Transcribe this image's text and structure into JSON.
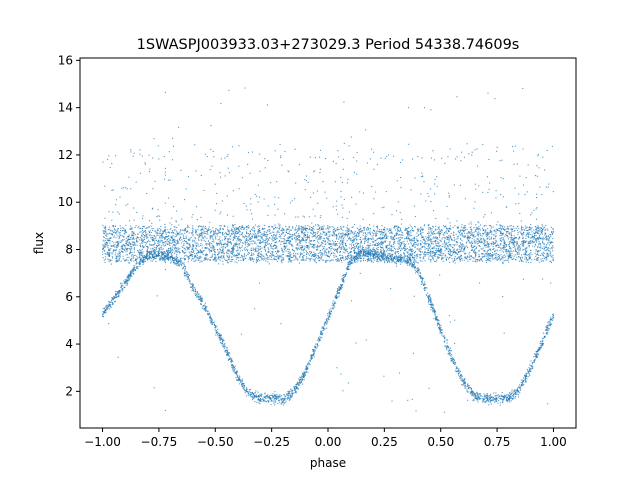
{
  "chart_data": {
    "type": "scatter",
    "title": "1SWASPJ003933.03+273029.3 Period 54338.74609s",
    "xlabel": "phase",
    "ylabel": "flux",
    "xlim": [
      -1.1,
      1.1
    ],
    "ylim": [
      0.45,
      16.1
    ],
    "x_ticks": [
      -1.0,
      -0.75,
      -0.5,
      -0.25,
      0.0,
      0.25,
      0.5,
      0.75,
      1.0
    ],
    "x_tick_labels": [
      "−1.00",
      "−0.75",
      "−0.50",
      "−0.25",
      "0.00",
      "0.25",
      "0.50",
      "0.75",
      "1.00"
    ],
    "y_ticks": [
      2,
      4,
      6,
      8,
      10,
      12,
      14,
      16
    ],
    "y_tick_labels": [
      "2",
      "4",
      "6",
      "8",
      "10",
      "12",
      "14",
      "16"
    ],
    "grid": false,
    "point_color": "#1f77b4",
    "series": [
      {
        "x": [
          -1.0,
          -0.95,
          -0.9,
          -0.85,
          -0.8,
          -0.75,
          -0.7,
          -0.65,
          -0.6,
          -0.55,
          -0.5,
          -0.45,
          -0.4,
          -0.35,
          -0.3,
          -0.25,
          -0.2,
          -0.15,
          -0.1,
          -0.05,
          0.0,
          0.05,
          0.1,
          0.15,
          0.2,
          0.25,
          0.3,
          0.35,
          0.4,
          0.45,
          0.5,
          0.55,
          0.6,
          0.65,
          0.7,
          0.75,
          0.8,
          0.85,
          0.9,
          0.95,
          1.0
        ],
        "y": [
          8.2,
          8.2,
          8.2,
          8.2,
          8.2,
          8.2,
          8.2,
          8.2,
          8.2,
          8.2,
          8.2,
          8.2,
          8.2,
          8.2,
          8.2,
          8.2,
          8.2,
          8.2,
          8.2,
          8.2,
          8.2,
          8.2,
          8.2,
          8.2,
          8.2,
          8.2,
          8.2,
          8.2,
          8.2,
          8.2,
          8.2,
          8.2,
          8.2,
          8.2,
          8.2,
          8.2,
          8.2,
          8.2,
          8.2,
          8.2,
          8.2
        ]
      },
      {
        "x": [
          -1.0,
          -0.95,
          -0.9,
          -0.85,
          -0.8,
          -0.75,
          -0.7,
          -0.65,
          -0.6,
          -0.55,
          -0.5,
          -0.45,
          -0.4,
          -0.35,
          -0.3,
          -0.25,
          -0.2,
          -0.15,
          -0.1,
          -0.05,
          0.0,
          0.05,
          0.1,
          0.15,
          0.2,
          0.25,
          0.3,
          0.35,
          0.4,
          0.45,
          0.5,
          0.55,
          0.6,
          0.65,
          0.7,
          0.75,
          0.8,
          0.85,
          0.9,
          0.95,
          1.0
        ],
        "y": [
          5.3,
          5.9,
          6.6,
          7.3,
          7.7,
          7.8,
          7.7,
          7.4,
          6.4,
          5.6,
          4.7,
          3.7,
          2.6,
          1.9,
          1.7,
          1.7,
          1.7,
          2.0,
          2.8,
          4.0,
          5.1,
          6.3,
          7.5,
          7.9,
          7.8,
          7.7,
          7.6,
          7.6,
          7.1,
          5.9,
          4.6,
          3.4,
          2.4,
          1.8,
          1.7,
          1.7,
          1.7,
          2.1,
          3.0,
          4.1,
          5.2
        ]
      }
    ],
    "scatter_spread": {
      "baseline_band": [
        7.5,
        9.0
      ],
      "eclipse_band_halfwidth": 0.2,
      "outlier_range": [
        1.0,
        15.3
      ]
    }
  }
}
